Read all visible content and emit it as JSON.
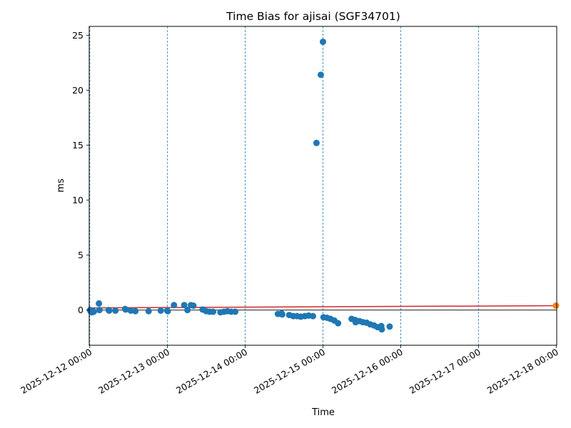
{
  "chart_data": {
    "type": "scatter",
    "title": "Time Bias for ajisai (SGF34701)",
    "xlabel": "Time",
    "ylabel": "ms",
    "xlim": [
      "2025-12-11T23:50",
      "2025-12-18T00:10"
    ],
    "ylim": [
      -3.2,
      25.8
    ],
    "y_ticks": [
      0,
      5,
      10,
      15,
      20,
      25
    ],
    "x_ticks": [
      "2025-12-12 00:00",
      "2025-12-13 00:00",
      "2025-12-14 00:00",
      "2025-12-15 00:00",
      "2025-12-16 00:00",
      "2025-12-17 00:00",
      "2025-12-18 00:00"
    ],
    "x_tick_dates": [
      "2025-12-12T00:00",
      "2025-12-13T00:00",
      "2025-12-14T00:00",
      "2025-12-15T00:00",
      "2025-12-16T00:00",
      "2025-12-17T00:00",
      "2025-12-18T00:00"
    ],
    "vertical_lines": [
      "2025-12-12T00:00",
      "2025-12-13T00:00",
      "2025-12-14T00:00",
      "2025-12-15T00:00",
      "2025-12-16T00:00",
      "2025-12-17T00:00"
    ],
    "zero_line": 0,
    "series": [
      {
        "color": "#1f77b4",
        "points": [
          {
            "x": "2025-12-12T00:05",
            "y": 0.0
          },
          {
            "x": "2025-12-12T00:15",
            "y": -0.1
          },
          {
            "x": "2025-12-12T00:30",
            "y": -0.05
          },
          {
            "x": "2025-12-12T00:40",
            "y": -0.2
          },
          {
            "x": "2025-12-12T00:55",
            "y": -0.05
          },
          {
            "x": "2025-12-12T01:15",
            "y": -0.15
          },
          {
            "x": "2025-12-12T02:50",
            "y": 0.6
          },
          {
            "x": "2025-12-12T03:00",
            "y": 0.0
          },
          {
            "x": "2025-12-12T05:50",
            "y": 0.0
          },
          {
            "x": "2025-12-12T06:00",
            "y": -0.05
          },
          {
            "x": "2025-12-12T07:55",
            "y": -0.05
          },
          {
            "x": "2025-12-12T10:55",
            "y": 0.1
          },
          {
            "x": "2025-12-12T11:05",
            "y": 0.05
          },
          {
            "x": "2025-12-12T12:40",
            "y": -0.05
          },
          {
            "x": "2025-12-12T14:05",
            "y": -0.1
          },
          {
            "x": "2025-12-12T18:10",
            "y": -0.1
          },
          {
            "x": "2025-12-12T21:55",
            "y": -0.05
          },
          {
            "x": "2025-12-12T23:55",
            "y": -0.05
          },
          {
            "x": "2025-12-13T00:05",
            "y": -0.1
          },
          {
            "x": "2025-12-13T02:00",
            "y": 0.45
          },
          {
            "x": "2025-12-13T05:10",
            "y": 0.45
          },
          {
            "x": "2025-12-13T06:10",
            "y": 0.0
          },
          {
            "x": "2025-12-13T07:15",
            "y": 0.45
          },
          {
            "x": "2025-12-13T08:00",
            "y": 0.4
          },
          {
            "x": "2025-12-13T10:50",
            "y": 0.05
          },
          {
            "x": "2025-12-13T11:55",
            "y": -0.1
          },
          {
            "x": "2025-12-13T13:00",
            "y": -0.15
          },
          {
            "x": "2025-12-13T14:05",
            "y": -0.15
          },
          {
            "x": "2025-12-13T16:20",
            "y": -0.2
          },
          {
            "x": "2025-12-13T17:25",
            "y": -0.15
          },
          {
            "x": "2025-12-13T18:30",
            "y": -0.1
          },
          {
            "x": "2025-12-13T19:40",
            "y": -0.15
          },
          {
            "x": "2025-12-13T20:55",
            "y": -0.15
          },
          {
            "x": "2025-12-14T10:05",
            "y": -0.35
          },
          {
            "x": "2025-12-14T11:15",
            "y": -0.3
          },
          {
            "x": "2025-12-14T11:25",
            "y": -0.4
          },
          {
            "x": "2025-12-14T13:35",
            "y": -0.45
          },
          {
            "x": "2025-12-14T14:50",
            "y": -0.55
          },
          {
            "x": "2025-12-14T16:00",
            "y": -0.55
          },
          {
            "x": "2025-12-14T17:10",
            "y": -0.6
          },
          {
            "x": "2025-12-14T18:25",
            "y": -0.55
          },
          {
            "x": "2025-12-14T19:35",
            "y": -0.5
          },
          {
            "x": "2025-12-14T20:55",
            "y": -0.55
          },
          {
            "x": "2025-12-14T22:00",
            "y": 15.2
          },
          {
            "x": "2025-12-14T23:20",
            "y": 21.4
          },
          {
            "x": "2025-12-15T00:00",
            "y": 24.4
          },
          {
            "x": "2025-12-15T00:10",
            "y": -0.65
          },
          {
            "x": "2025-12-15T01:15",
            "y": -0.7
          },
          {
            "x": "2025-12-15T02:20",
            "y": -0.8
          },
          {
            "x": "2025-12-15T03:30",
            "y": -0.95
          },
          {
            "x": "2025-12-15T04:40",
            "y": -1.2
          },
          {
            "x": "2025-12-15T08:50",
            "y": -0.8
          },
          {
            "x": "2025-12-15T09:55",
            "y": -0.9
          },
          {
            "x": "2025-12-15T10:05",
            "y": -1.1
          },
          {
            "x": "2025-12-15T11:15",
            "y": -1.0
          },
          {
            "x": "2025-12-15T12:20",
            "y": -1.1
          },
          {
            "x": "2025-12-15T13:30",
            "y": -1.15
          },
          {
            "x": "2025-12-15T14:35",
            "y": -1.3
          },
          {
            "x": "2025-12-15T15:45",
            "y": -1.4
          },
          {
            "x": "2025-12-15T16:50",
            "y": -1.55
          },
          {
            "x": "2025-12-15T18:00",
            "y": -1.45
          },
          {
            "x": "2025-12-15T18:10",
            "y": -1.75
          },
          {
            "x": "2025-12-15T20:35",
            "y": -1.5
          }
        ]
      },
      {
        "color": "#ff7f0e",
        "points": [
          {
            "x": "2025-12-17T23:55",
            "y": 0.4
          }
        ]
      }
    ],
    "trend_line": {
      "color": "#d62728",
      "from": {
        "x": "2025-12-12T00:00",
        "y": 0.2
      },
      "to": {
        "x": "2025-12-17T23:55",
        "y": 0.4
      }
    }
  }
}
